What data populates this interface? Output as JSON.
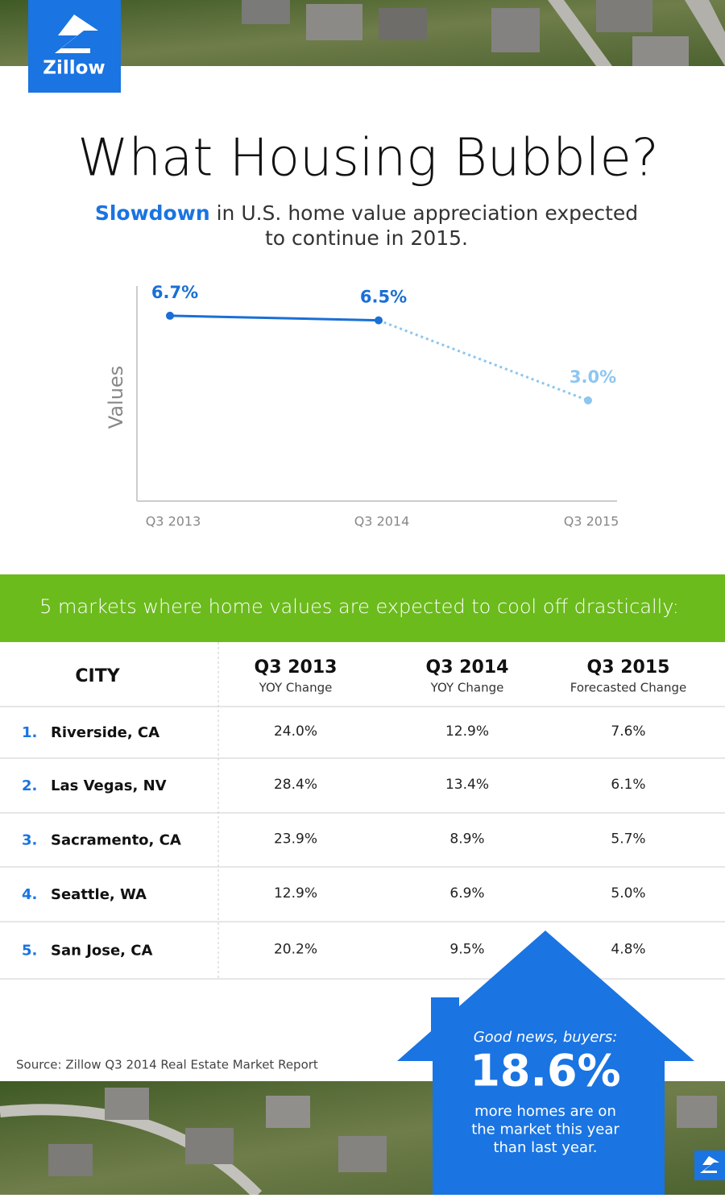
{
  "brand": "Zillow",
  "header": {
    "title": "What Housing Bubble?",
    "subtitle_highlight": "Slowdown",
    "subtitle_line1": "in U.S. home value appreciation expected",
    "subtitle_line2": "to continue in 2015."
  },
  "chart_data": {
    "type": "line",
    "y_label": "Values",
    "categories": [
      "Q3 2013",
      "Q3 2014",
      "Q3 2015"
    ],
    "values": [
      6.7,
      6.5,
      3.0
    ],
    "value_labels": [
      "6.7%",
      "6.5%",
      "3.0%"
    ],
    "point_colors": [
      "#1a6fd6",
      "#1a6fd6",
      "#8dc6f0"
    ],
    "ylim": [
      -1.4,
      8.0
    ]
  },
  "banner": "5 markets where home values are expected to cool off drastically:",
  "table": {
    "header": {
      "city": "CITY",
      "columns": [
        [
          "Q3 2013",
          "YOY Change"
        ],
        [
          "Q3 2014",
          "YOY Change"
        ],
        [
          "Q3 2015",
          "Forecasted Change"
        ]
      ]
    },
    "rows": [
      [
        "1.",
        "Riverside, CA",
        "24.0%",
        "12.9%",
        "7.6%"
      ],
      [
        "2.",
        "Las Vegas, NV",
        "28.4%",
        "13.4%",
        "6.1%"
      ],
      [
        "3.",
        "Sacramento, CA",
        "23.9%",
        "8.9%",
        "5.7%"
      ],
      [
        "4.",
        "Seattle, WA",
        "12.9%",
        "6.9%",
        "5.0%"
      ],
      [
        "5.",
        "San Jose, CA",
        "20.2%",
        "9.5%",
        "4.8%"
      ]
    ]
  },
  "source": "Source: Zillow Q3 2014 Real Estate Market Report",
  "callout": {
    "intro": "Good news, buyers:",
    "stat": "18.6%",
    "lines": [
      "more homes are on",
      "the market this year",
      "than last year."
    ]
  }
}
